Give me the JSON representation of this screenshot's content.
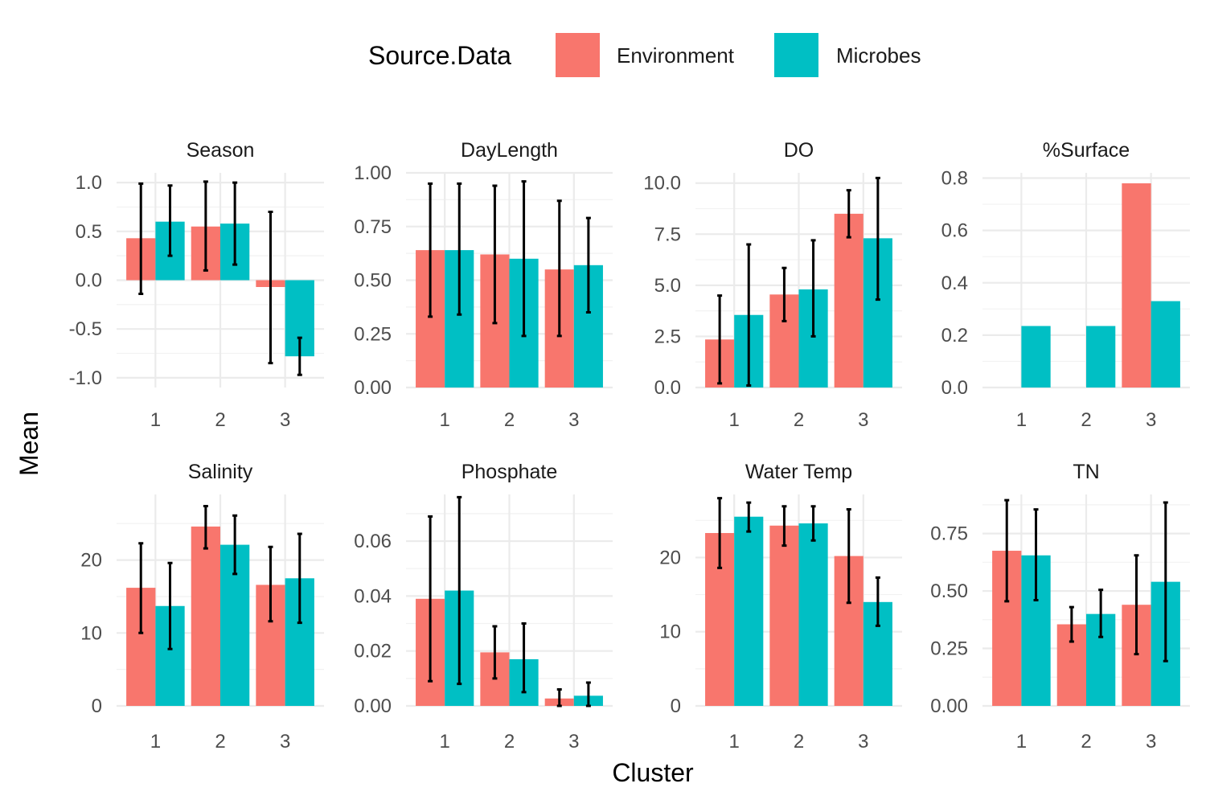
{
  "legend": {
    "title": "Source.Data",
    "position": "top",
    "entries": [
      {
        "label": "Environment",
        "color": "#F8766D"
      },
      {
        "label": "Microbes",
        "color": "#00BFC4"
      }
    ]
  },
  "axes": {
    "xlabel": "Cluster",
    "ylabel": "Mean"
  },
  "chart_data": {
    "type": "bar",
    "layout": "faceted 2 rows x 4 columns, dodged bars with error bars",
    "categories": [
      "1",
      "2",
      "3"
    ],
    "series_names": [
      "Environment",
      "Microbes"
    ],
    "colors": [
      "#F8766D",
      "#00BFC4"
    ],
    "grid": true,
    "xlabel": "Cluster",
    "ylabel": "Mean",
    "facets": [
      {
        "title": "Season",
        "ylim": [
          -1.1,
          1.1
        ],
        "yticks": [
          -1.0,
          -0.5,
          0.0,
          0.5,
          1.0
        ],
        "ytick_labels": [
          "-1.0",
          "-0.5",
          "0.0",
          "0.5",
          "1.0"
        ],
        "series": [
          {
            "name": "Environment",
            "values": [
              0.43,
              0.55,
              -0.07
            ],
            "err_low": [
              -0.14,
              0.1,
              -0.85
            ],
            "err_high": [
              0.99,
              1.01,
              0.7
            ]
          },
          {
            "name": "Microbes",
            "values": [
              0.6,
              0.58,
              -0.78
            ],
            "err_low": [
              0.25,
              0.16,
              -0.97
            ],
            "err_high": [
              0.97,
              1.0,
              -0.59
            ]
          }
        ]
      },
      {
        "title": "DayLength",
        "ylim": [
          0,
          1.0
        ],
        "yticks": [
          0,
          0.25,
          0.5,
          0.75,
          1.0
        ],
        "ytick_labels": [
          "0.00",
          "0.25",
          "0.50",
          "0.75",
          "1.00"
        ],
        "series": [
          {
            "name": "Environment",
            "values": [
              0.64,
              0.62,
              0.55
            ],
            "err_low": [
              0.33,
              0.3,
              0.24
            ],
            "err_high": [
              0.95,
              0.94,
              0.87
            ]
          },
          {
            "name": "Microbes",
            "values": [
              0.64,
              0.6,
              0.57
            ],
            "err_low": [
              0.34,
              0.24,
              0.35
            ],
            "err_high": [
              0.95,
              0.96,
              0.79
            ]
          }
        ]
      },
      {
        "title": "DO",
        "ylim": [
          0,
          10.5
        ],
        "yticks": [
          0,
          2.5,
          5.0,
          7.5,
          10.0
        ],
        "ytick_labels": [
          "0.0",
          "2.5",
          "5.0",
          "7.5",
          "10.0"
        ],
        "series": [
          {
            "name": "Environment",
            "values": [
              2.35,
              4.55,
              8.5
            ],
            "err_low": [
              0.2,
              3.25,
              7.35
            ],
            "err_high": [
              4.5,
              5.85,
              9.65
            ]
          },
          {
            "name": "Microbes",
            "values": [
              3.55,
              4.8,
              7.3
            ],
            "err_low": [
              0.1,
              2.5,
              4.3
            ],
            "err_high": [
              7.0,
              7.2,
              10.25
            ]
          }
        ]
      },
      {
        "title": "%Surface",
        "ylim": [
          0,
          0.82
        ],
        "yticks": [
          0,
          0.2,
          0.4,
          0.6,
          0.8
        ],
        "ytick_labels": [
          "0.0",
          "0.2",
          "0.4",
          "0.6",
          "0.8"
        ],
        "series": [
          {
            "name": "Environment",
            "values": [
              0,
              0,
              0.78
            ],
            "err_low": null,
            "err_high": null
          },
          {
            "name": "Microbes",
            "values": [
              0.235,
              0.235,
              0.33
            ],
            "err_low": null,
            "err_high": null
          }
        ]
      },
      {
        "title": "Salinity",
        "ylim": [
          0,
          29
        ],
        "yticks": [
          0,
          10,
          20
        ],
        "ytick_labels": [
          "0",
          "10",
          "20"
        ],
        "series": [
          {
            "name": "Environment",
            "values": [
              16.2,
              24.6,
              16.6
            ],
            "err_low": [
              10.0,
              21.6,
              11.6
            ],
            "err_high": [
              22.3,
              27.4,
              21.8
            ]
          },
          {
            "name": "Microbes",
            "values": [
              13.7,
              22.1,
              17.5
            ],
            "err_low": [
              7.8,
              18.1,
              11.4
            ],
            "err_high": [
              19.6,
              26.1,
              23.6
            ]
          }
        ]
      },
      {
        "title": "Phosphate",
        "ylim": [
          0,
          0.077
        ],
        "yticks": [
          0,
          0.02,
          0.04,
          0.06
        ],
        "ytick_labels": [
          "0.00",
          "0.02",
          "0.04",
          "0.06"
        ],
        "series": [
          {
            "name": "Environment",
            "values": [
              0.039,
              0.0195,
              0.0027
            ],
            "err_low": [
              0.009,
              0.01,
              0
            ],
            "err_high": [
              0.069,
              0.029,
              0.006
            ]
          },
          {
            "name": "Microbes",
            "values": [
              0.042,
              0.017,
              0.0037
            ],
            "err_low": [
              0.008,
              0.005,
              0
            ],
            "err_high": [
              0.076,
              0.03,
              0.0085
            ]
          }
        ]
      },
      {
        "title": "Water Temp",
        "ylim": [
          0,
          28.5
        ],
        "yticks": [
          0,
          10,
          20
        ],
        "ytick_labels": [
          "0",
          "10",
          "20"
        ],
        "series": [
          {
            "name": "Environment",
            "values": [
              23.3,
              24.3,
              20.2
            ],
            "err_low": [
              18.6,
              21.6,
              13.9
            ],
            "err_high": [
              28.0,
              26.9,
              26.5
            ]
          },
          {
            "name": "Microbes",
            "values": [
              25.5,
              24.6,
              14.0
            ],
            "err_low": [
              23.5,
              22.3,
              10.8
            ],
            "err_high": [
              27.4,
              26.9,
              17.3
            ]
          }
        ]
      },
      {
        "title": "TN",
        "ylim": [
          0,
          0.92
        ],
        "yticks": [
          0,
          0.25,
          0.5,
          0.75
        ],
        "ytick_labels": [
          "0.00",
          "0.25",
          "0.50",
          "0.75"
        ],
        "series": [
          {
            "name": "Environment",
            "values": [
              0.675,
              0.355,
              0.44
            ],
            "err_low": [
              0.455,
              0.28,
              0.225
            ],
            "err_high": [
              0.895,
              0.43,
              0.655
            ]
          },
          {
            "name": "Microbes",
            "values": [
              0.655,
              0.4,
              0.54
            ],
            "err_low": [
              0.46,
              0.3,
              0.195
            ],
            "err_high": [
              0.855,
              0.505,
              0.885
            ]
          }
        ]
      }
    ]
  }
}
